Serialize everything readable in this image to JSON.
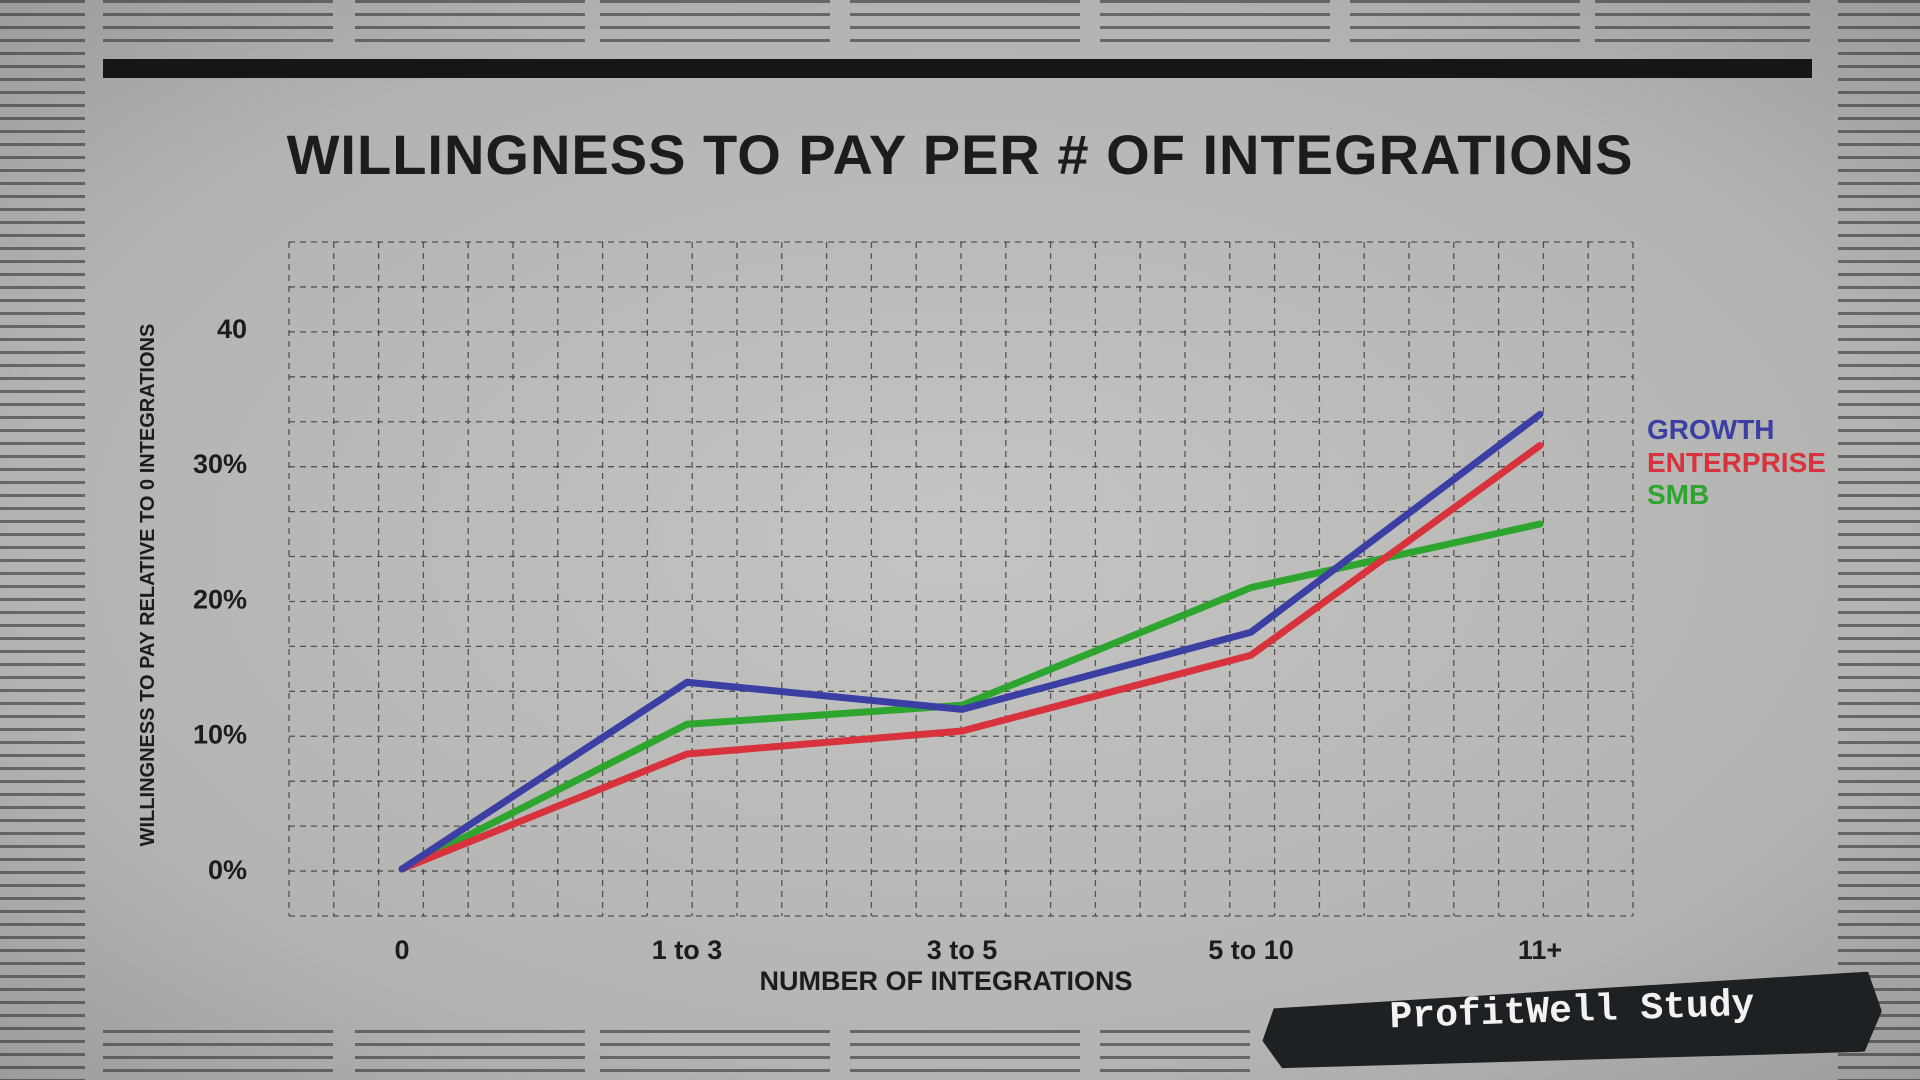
{
  "chart_data": {
    "type": "line",
    "title": "WILLINGNESS TO PAY PER # OF INTEGRATIONS",
    "xlabel": "NUMBER OF INTEGRATIONS",
    "ylabel": "WILLINGNESS TO PAY RELATIVE TO 0 INTEGRATIONS",
    "categories": [
      "0",
      "1 to 3",
      "3 to 5",
      "5 to 10",
      "11+"
    ],
    "yticks": [
      {
        "v": 0,
        "label": "0%"
      },
      {
        "v": 10,
        "label": "10%"
      },
      {
        "v": 20,
        "label": "20%"
      },
      {
        "v": 30,
        "label": "30%"
      },
      {
        "v": 40,
        "label": "40"
      }
    ],
    "ylim": [
      -3.5,
      47
    ],
    "grid": true,
    "legend_placement": "right",
    "series": [
      {
        "name": "GROWTH",
        "color": "#3b3fa3",
        "values": [
          0,
          13.8,
          11.8,
          17.5,
          33.6
        ]
      },
      {
        "name": "ENTERPRISE",
        "color": "#d8323c",
        "values": [
          0,
          8.5,
          10.2,
          15.8,
          31.3
        ]
      },
      {
        "name": "SMB",
        "color": "#2ea52e",
        "values": [
          0,
          10.7,
          12.1,
          20.8,
          25.5
        ]
      }
    ]
  },
  "stamp": "ProfitWell Study"
}
